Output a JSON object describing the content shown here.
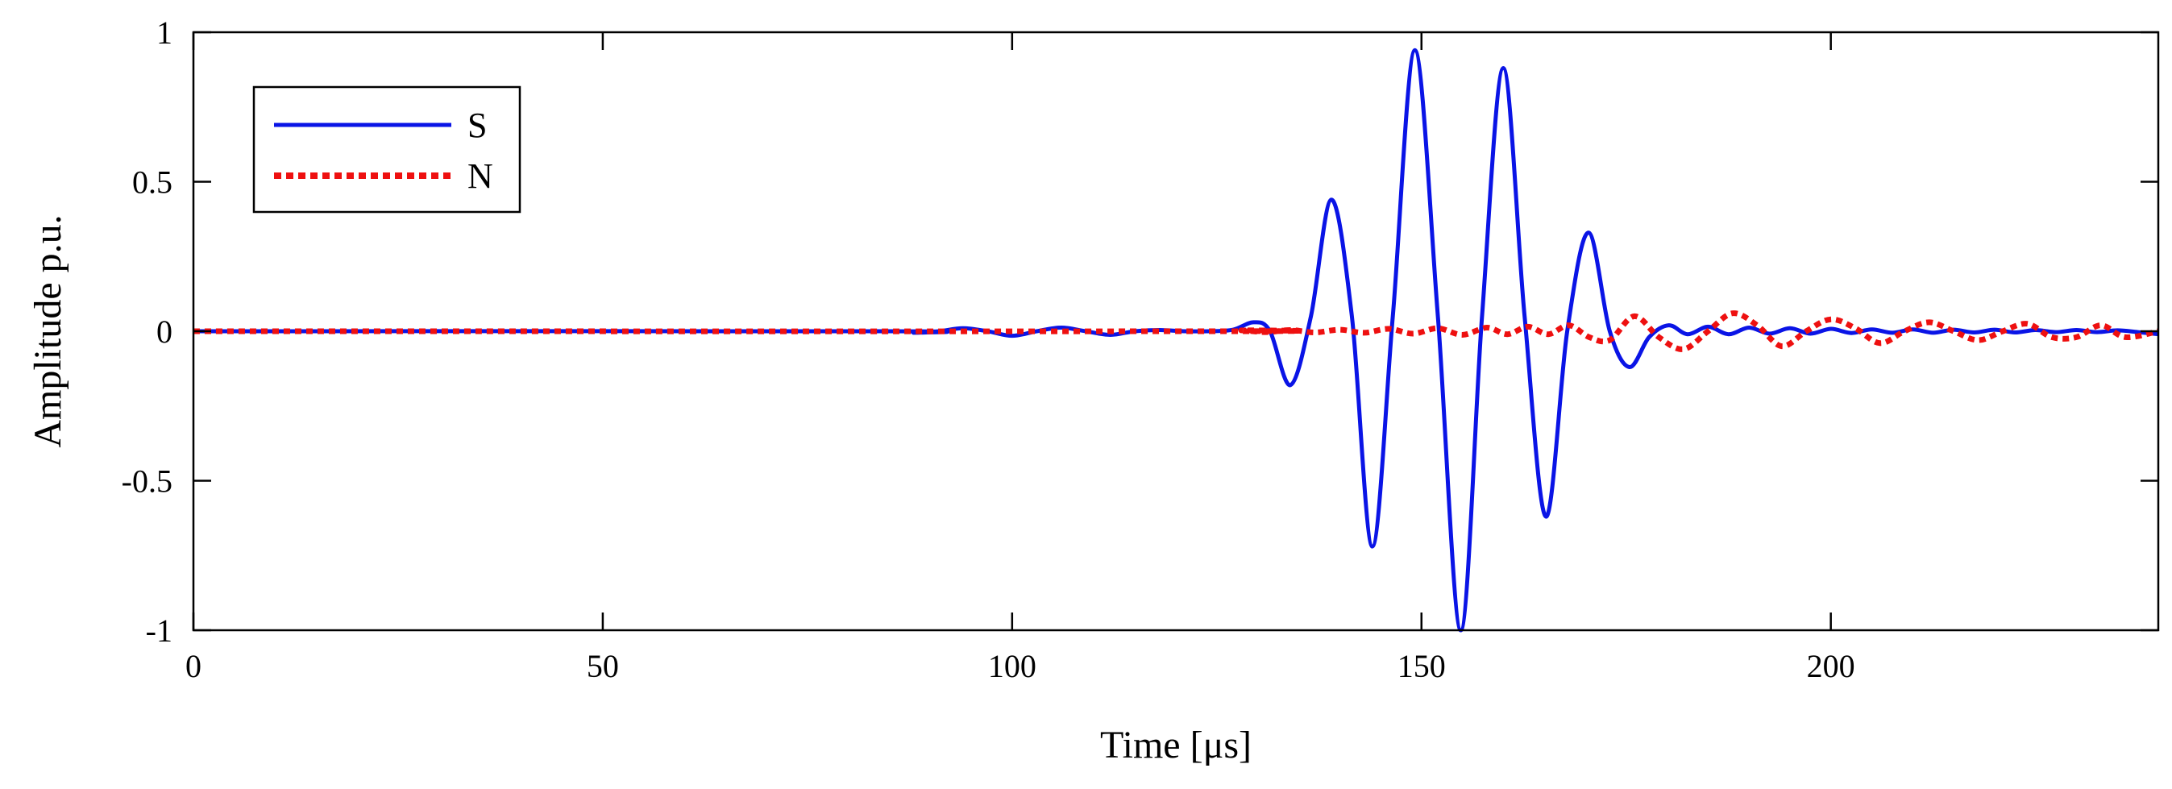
{
  "chart_data": {
    "type": "line",
    "xlabel": "Time [μs]",
    "ylabel": "Amplitude p.u.",
    "xlim": [
      0,
      240
    ],
    "ylim": [
      -1,
      1
    ],
    "xticks": [
      0,
      50,
      100,
      150,
      200
    ],
    "xtick_labels": [
      "0",
      "50",
      "100",
      "150",
      "200"
    ],
    "yticks": [
      1,
      0.5,
      0,
      -0.5,
      -1
    ],
    "ytick_labels": [
      "1",
      "0.5",
      "0",
      "-0.5",
      "-1"
    ],
    "grid": false,
    "legend_position": "top-left",
    "series": [
      {
        "name": "S",
        "color": "#0a14e6",
        "style": "solid",
        "x": [
          0,
          85,
          88,
          91,
          94,
          97,
          100,
          103,
          106,
          109,
          112,
          115,
          118,
          121,
          124,
          127,
          129.5,
          131.5,
          134,
          136.5,
          139,
          141.5,
          144,
          146.5,
          149.2,
          152,
          154.8,
          157.4,
          160,
          162.6,
          165.2,
          167.8,
          170.4,
          173,
          175.4,
          177.8,
          180.2,
          182.5,
          185,
          187.5,
          190,
          192.5,
          195,
          197.5,
          200,
          202.5,
          205,
          207.5,
          210,
          212.5,
          215,
          217.5,
          220,
          222.5,
          225,
          227.5,
          230,
          232.5,
          235,
          237.5,
          240
        ],
        "y": [
          0,
          0,
          -0.005,
          0,
          0.01,
          0,
          -0.015,
          0,
          0.012,
          0,
          -0.012,
          0,
          0.004,
          0,
          0,
          0.005,
          0.03,
          0,
          -0.18,
          0.05,
          0.44,
          0.05,
          -0.72,
          0.05,
          0.94,
          0.05,
          -1.0,
          0.05,
          0.88,
          0.05,
          -0.62,
          0,
          0.33,
          0,
          -0.12,
          -0.02,
          0.02,
          -0.01,
          0.015,
          -0.01,
          0.012,
          -0.008,
          0.01,
          -0.008,
          0.008,
          -0.006,
          0.006,
          -0.005,
          0.006,
          -0.005,
          0.005,
          -0.004,
          0.005,
          -0.004,
          0.004,
          -0.003,
          0.004,
          -0.003,
          0.003,
          -0.003,
          -0.01
        ]
      },
      {
        "name": "N",
        "color": "#ee1010",
        "style": "dotted",
        "x": [
          0,
          125,
          128,
          131,
          134,
          137,
          140,
          143,
          146,
          149,
          152,
          155,
          158,
          160.5,
          163,
          165.5,
          168,
          170.5,
          173,
          176,
          179,
          182,
          185,
          188,
          191,
          194,
          197,
          200,
          203,
          206,
          209,
          212,
          215,
          218,
          221,
          224,
          227,
          230,
          233,
          236,
          240
        ],
        "y": [
          0,
          0,
          0.003,
          -0.003,
          0.004,
          -0.004,
          0.005,
          -0.005,
          0.008,
          -0.008,
          0.01,
          -0.012,
          0.012,
          -0.01,
          0.015,
          -0.01,
          0.02,
          -0.02,
          -0.03,
          0.05,
          -0.02,
          -0.06,
          0.0,
          0.06,
          0.02,
          -0.05,
          0.0,
          0.04,
          0.01,
          -0.04,
          0.0,
          0.03,
          0.0,
          -0.03,
          0.0,
          0.025,
          -0.02,
          -0.02,
          0.02,
          -0.02,
          0.0
        ]
      }
    ]
  }
}
